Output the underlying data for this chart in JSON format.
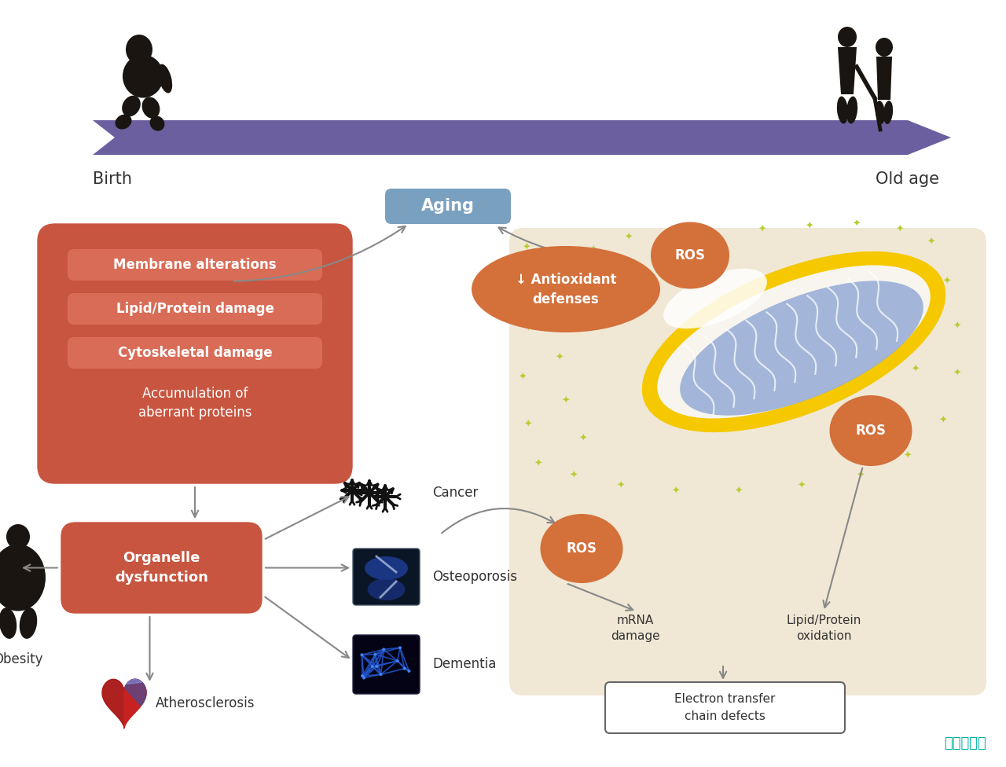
{
  "bg_color": "#ffffff",
  "banner_color": "#6b5fa0",
  "aging_box_color": "#7aa0c0",
  "birth_label": "Birth",
  "old_age_label": "Old age",
  "aging_label": "Aging",
  "ros_color": "#d4703a",
  "ros_label": "ROS",
  "mito_bg_color": "#f0e8d5",
  "mito_outer_color": "#f5c800",
  "mito_inner_color": "#9ab0d8",
  "mito_white": "#ffffff",
  "antioxidant_label": "↓ Antioxidant\ndefenses",
  "main_box_color": "#c85540",
  "main_box_labels": [
    "Membrane alterations",
    "Lipid/Protein damage",
    "Cytoskeletal damage"
  ],
  "main_box_sublabel": "Accumulation of\naberrant proteins",
  "organelle_label": "Organelle\ndysfunction",
  "cancer_label": "Cancer",
  "osteoporosis_label": "Osteoporosis",
  "dementia_label": "Dementia",
  "obesity_label": "Obesity",
  "atherosclerosis_label": "Atherosclerosis",
  "mrna_label": "mRNA\ndamage",
  "lipid_ox_label": "Lipid/Protein\noxidation",
  "electron_label": "Electron transfer\nchain defects",
  "watermark": "热爱收录库",
  "watermark_color": "#00b0a0",
  "gray_arrow_color": "#888888",
  "star_color": "#b8cc30",
  "dark_silhouette": "#1a1510",
  "white": "#ffffff",
  "sub_box_alpha_color": "#e8806a"
}
